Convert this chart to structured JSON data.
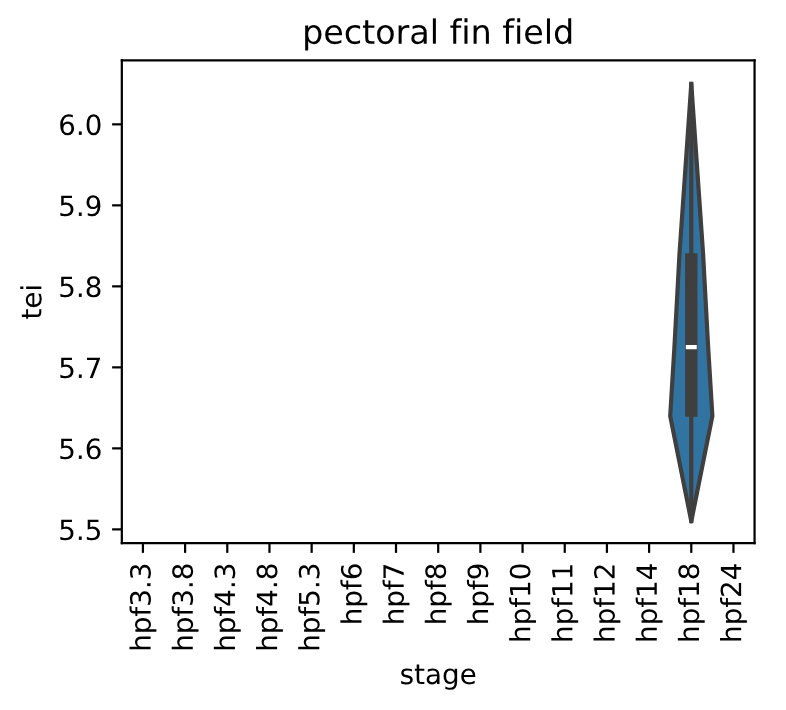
{
  "chart_data": {
    "type": "box",
    "title": "pectoral fin field",
    "xlabel": "stage",
    "ylabel": "tei",
    "categories": [
      "hpf3.3",
      "hpf3.8",
      "hpf4.3",
      "hpf4.8",
      "hpf5.3",
      "hpf6",
      "hpf7",
      "hpf8",
      "hpf9",
      "hpf10",
      "hpf11",
      "hpf12",
      "hpf14",
      "hpf18",
      "hpf24"
    ],
    "boxes": [
      null,
      null,
      null,
      null,
      null,
      null,
      null,
      null,
      null,
      null,
      null,
      null,
      null,
      {
        "low": 5.51,
        "q1": 5.64,
        "median": 5.725,
        "q3": 5.84,
        "high": 6.05
      },
      null
    ],
    "color": "#3f3f3f",
    "ylim": [
      5.483,
      6.079
    ],
    "yticks": [
      5.5,
      5.6,
      5.7,
      5.8,
      5.9,
      {
        "value": 6,
        "label": "6.0"
      }
    ]
  }
}
